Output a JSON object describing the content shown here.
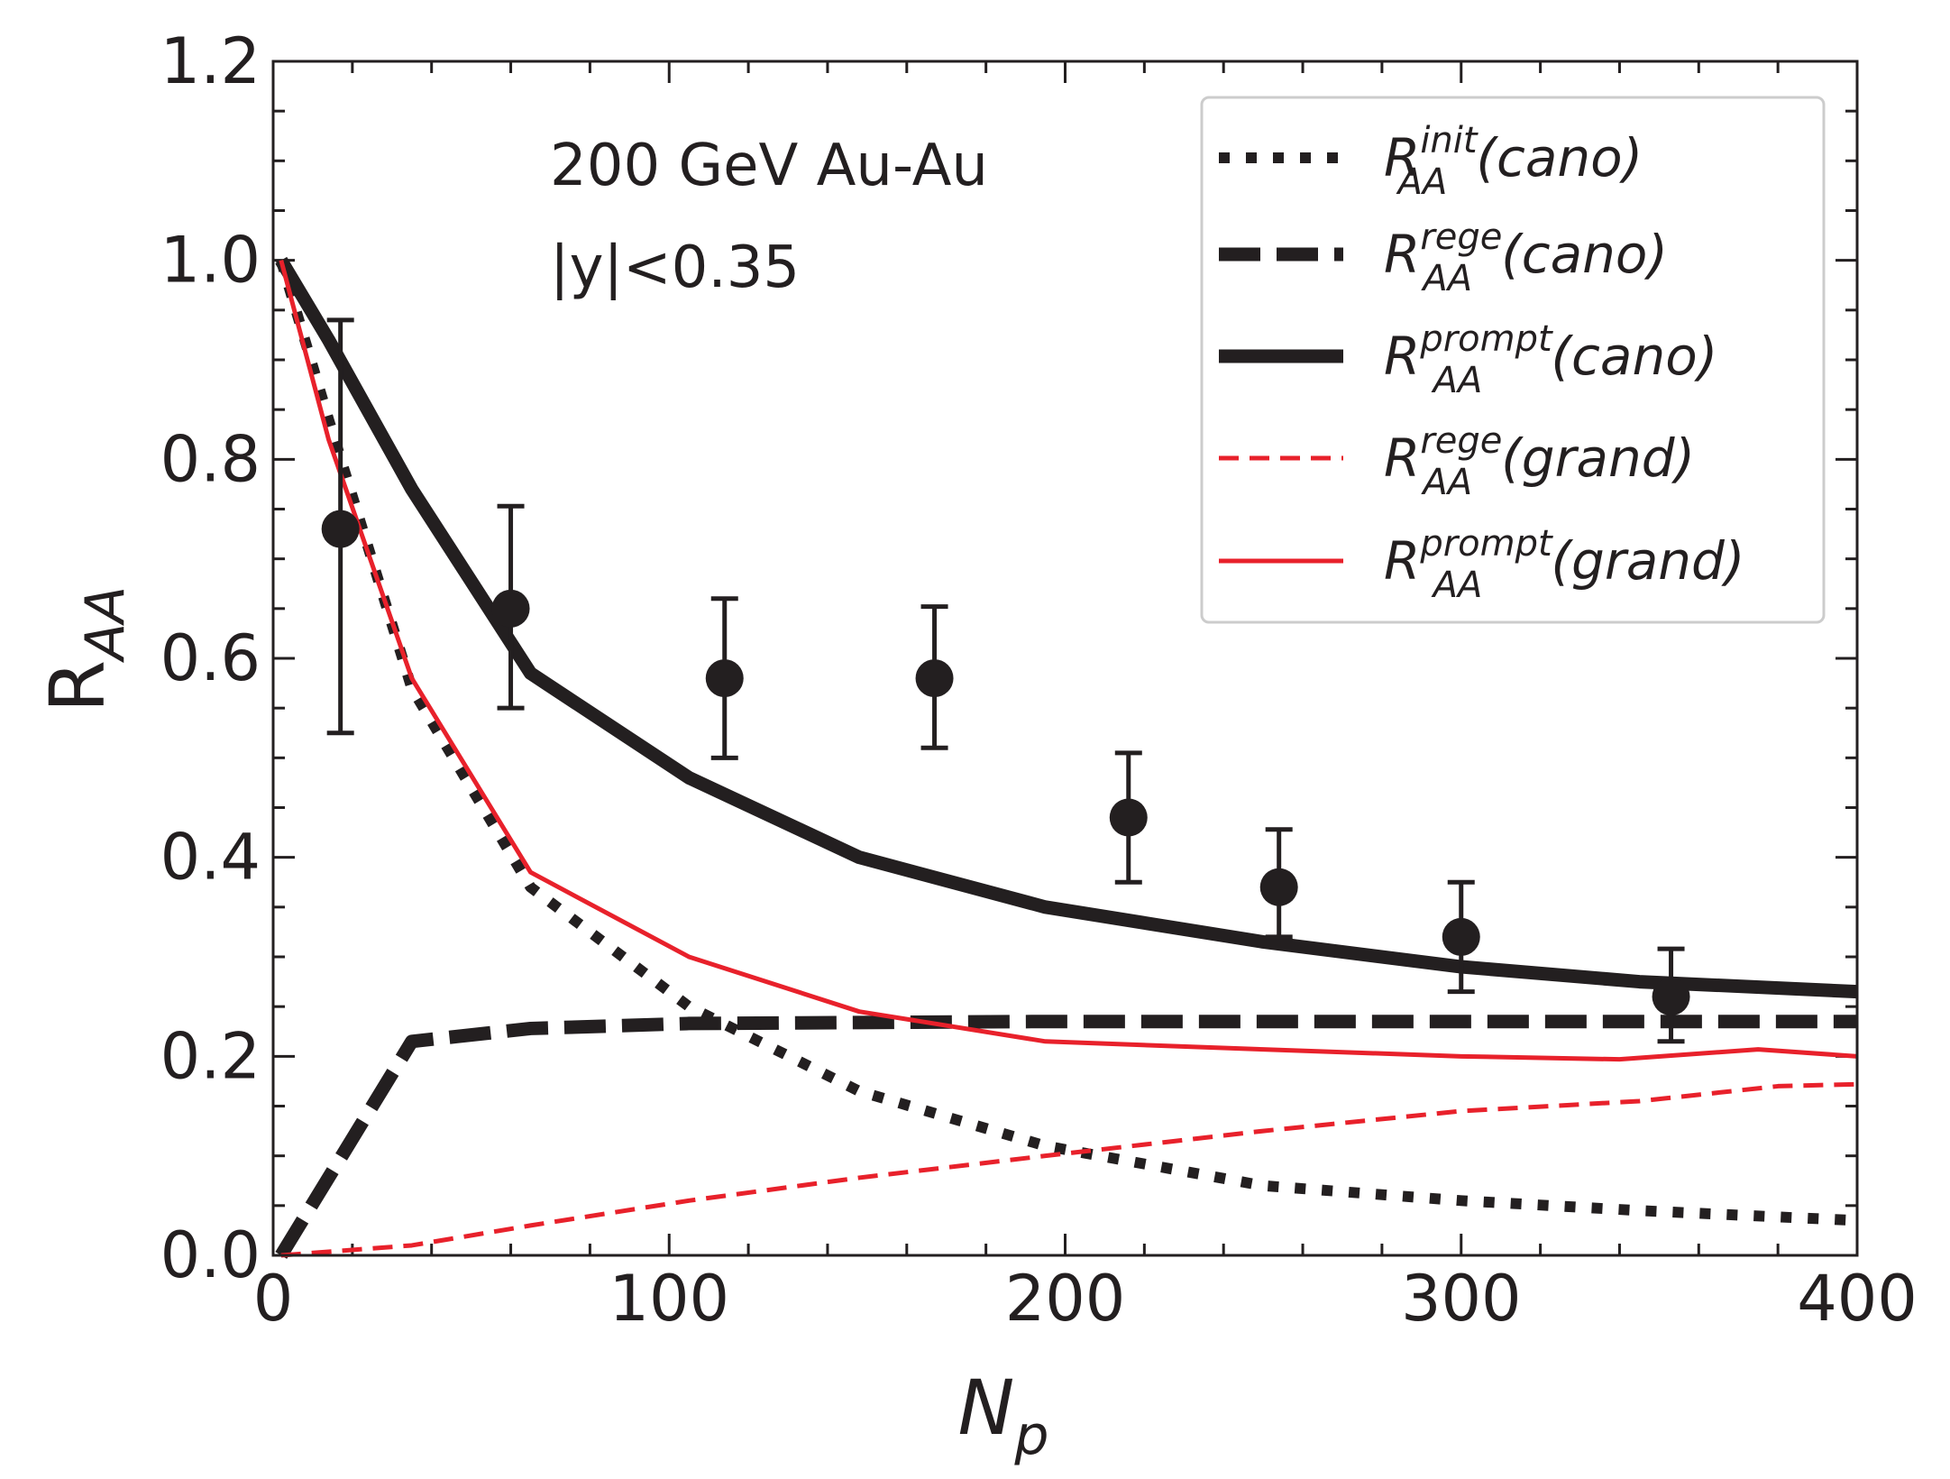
{
  "chart_data": {
    "type": "line",
    "xlabel": {
      "main": "N",
      "sub": "p"
    },
    "ylabel": {
      "main": "R",
      "sub": "AA"
    },
    "xlim": [
      0,
      400
    ],
    "ylim": [
      0,
      1.2
    ],
    "x_ticks": [
      0,
      100,
      200,
      300,
      400
    ],
    "x_tick_labels": [
      "0",
      "100",
      "200",
      "300",
      "400"
    ],
    "y_ticks": [
      0.0,
      0.2,
      0.4,
      0.6,
      0.8,
      1.0,
      1.2
    ],
    "y_tick_labels": [
      "0.0",
      "0.2",
      "0.4",
      "0.6",
      "0.8",
      "1.0",
      "1.2"
    ],
    "annotations": [
      "200 GeV Au-Au",
      "|y|<0.35"
    ],
    "legend_position": "top-right",
    "series": [
      {
        "name": "R_AA^init(cano)",
        "label_main": "R",
        "label_sup": "init",
        "label_sub": "AA",
        "label_paren": "(cano)",
        "style": "dotted",
        "color": "#231f20",
        "x": [
          2,
          14,
          35,
          65,
          105,
          148,
          195,
          250,
          300,
          345,
          400
        ],
        "y": [
          1.0,
          0.84,
          0.57,
          0.37,
          0.25,
          0.165,
          0.11,
          0.07,
          0.055,
          0.045,
          0.035
        ]
      },
      {
        "name": "R_AA^rege(cano)",
        "label_main": "R",
        "label_sup": "rege",
        "label_sub": "AA",
        "label_paren": "(cano)",
        "style": "dashed-thick",
        "color": "#231f20",
        "x": [
          2,
          35,
          65,
          105,
          148,
          195,
          250,
          300,
          345,
          400
        ],
        "y": [
          0.0,
          0.215,
          0.228,
          0.233,
          0.234,
          0.235,
          0.235,
          0.235,
          0.235,
          0.235
        ]
      },
      {
        "name": "R_AA^prompt(cano)",
        "label_main": "R",
        "label_sup": "prompt",
        "label_sub": "AA",
        "label_paren": "(cano)",
        "style": "solid-thick",
        "color": "#231f20",
        "x": [
          2,
          14,
          35,
          65,
          105,
          148,
          195,
          250,
          300,
          345,
          400
        ],
        "y": [
          1.0,
          0.92,
          0.77,
          0.585,
          0.48,
          0.4,
          0.35,
          0.315,
          0.29,
          0.275,
          0.265
        ]
      },
      {
        "name": "R_AA^rege(grand)",
        "label_main": "R",
        "label_sup": "rege",
        "label_sub": "AA",
        "label_paren": "(grand)",
        "style": "dashed-thin",
        "color": "#e8212b",
        "x": [
          2,
          35,
          65,
          105,
          148,
          195,
          250,
          300,
          345,
          380,
          400
        ],
        "y": [
          0.0,
          0.01,
          0.03,
          0.055,
          0.078,
          0.1,
          0.125,
          0.145,
          0.155,
          0.17,
          0.172
        ]
      },
      {
        "name": "R_AA^prompt(grand)",
        "label_main": "R",
        "label_sup": "prompt",
        "label_sub": "AA",
        "label_paren": "(grand)",
        "style": "solid-thin",
        "color": "#e8212b",
        "x": [
          2,
          14,
          35,
          65,
          105,
          148,
          195,
          250,
          300,
          340,
          375,
          400
        ],
        "y": [
          1.0,
          0.82,
          0.58,
          0.385,
          0.3,
          0.245,
          0.215,
          0.207,
          0.2,
          0.197,
          0.207,
          0.2
        ]
      }
    ],
    "data_points": {
      "name": "data",
      "color": "#231f20",
      "x": [
        17,
        60,
        114,
        167,
        216,
        254,
        300,
        353
      ],
      "y": [
        0.73,
        0.65,
        0.58,
        0.58,
        0.44,
        0.37,
        0.32,
        0.26
      ],
      "err_low": [
        0.205,
        0.1,
        0.08,
        0.07,
        0.065,
        0.05,
        0.055,
        0.045
      ],
      "err_high": [
        0.21,
        0.103,
        0.08,
        0.072,
        0.065,
        0.058,
        0.055,
        0.048
      ]
    }
  }
}
